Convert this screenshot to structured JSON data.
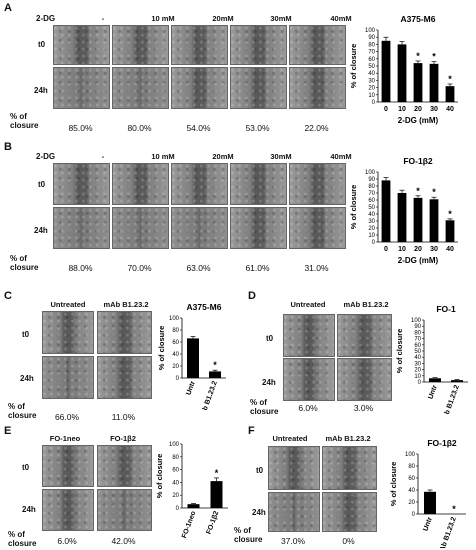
{
  "panels": {
    "A": {
      "label": "A",
      "row_header_label": "2-DG",
      "columns": [
        "-",
        "10 mM",
        "20mM",
        "30mM",
        "40mM"
      ],
      "rows": [
        "t0",
        "24h"
      ],
      "closure_label": "% of closure",
      "closure_values": [
        "85.0%",
        "80.0%",
        "54.0%",
        "53.0%",
        "22.0%"
      ]
    },
    "B": {
      "label": "B",
      "row_header_label": "2-DG",
      "columns": [
        "-",
        "10 mM",
        "20mM",
        "30mM",
        "40mM"
      ],
      "rows": [
        "t0",
        "24h"
      ],
      "closure_label": "% of closure",
      "closure_values": [
        "88.0%",
        "70.0%",
        "63.0%",
        "61.0%",
        "31.0%"
      ]
    },
    "C": {
      "label": "C",
      "columns": [
        "Untreated",
        "mAb B1.23.2"
      ],
      "rows": [
        "t0",
        "24h"
      ],
      "closure_label": "% of closure",
      "closure_values": [
        "66.0%",
        "11.0%"
      ]
    },
    "D": {
      "label": "D",
      "columns": [
        "Untreated",
        "mAb B1.23.2"
      ],
      "rows": [
        "t0",
        "24h"
      ],
      "closure_label": "% of closure",
      "closure_values": [
        "6.0%",
        "3.0%"
      ]
    },
    "E": {
      "label": "E",
      "columns": [
        "FO-1neo",
        "FO-1β2"
      ],
      "rows": [
        "t0",
        "24h"
      ],
      "closure_label": "% of closure",
      "closure_values": [
        "6.0%",
        "42.0%"
      ]
    },
    "F": {
      "label": "F",
      "columns": [
        "Untreated",
        "mAb B1.23.2"
      ],
      "rows": [
        "t0",
        "24h"
      ],
      "closure_label": "% of closure",
      "closure_values": [
        "37.0%",
        "0%"
      ]
    }
  },
  "chart_data": [
    {
      "id": "A",
      "type": "bar",
      "title": "A375-M6",
      "ylabel": "% of closure",
      "xlabel": "2-DG (mM)",
      "categories": [
        "0",
        "10",
        "20",
        "30",
        "40"
      ],
      "values": [
        85,
        80,
        54,
        53,
        22
      ],
      "errors": [
        5,
        4,
        3,
        3,
        3
      ],
      "significant": [
        false,
        false,
        true,
        true,
        true
      ],
      "ylim": [
        0,
        100
      ],
      "yticks": [
        0,
        10,
        20,
        30,
        40,
        50,
        60,
        70,
        80,
        90,
        100
      ],
      "bar_color": "#000000"
    },
    {
      "id": "B",
      "type": "bar",
      "title": "FO-1β2",
      "ylabel": "% of closure",
      "xlabel": "2-DG (mM)",
      "categories": [
        "0",
        "10",
        "20",
        "30",
        "40"
      ],
      "values": [
        88,
        70,
        63,
        61,
        31
      ],
      "errors": [
        4,
        4,
        3,
        3,
        2
      ],
      "significant": [
        false,
        false,
        true,
        true,
        true
      ],
      "ylim": [
        0,
        100
      ],
      "yticks": [
        0,
        10,
        20,
        30,
        40,
        50,
        60,
        70,
        80,
        90,
        100
      ],
      "bar_color": "#000000"
    },
    {
      "id": "C",
      "type": "bar",
      "title": "A375-M6",
      "ylabel": "% of closure",
      "xlabel": "",
      "categories": [
        "Untr",
        "mAb B1.23.2"
      ],
      "values": [
        66,
        11
      ],
      "errors": [
        3,
        2
      ],
      "significant": [
        false,
        true
      ],
      "ylim": [
        0,
        100
      ],
      "yticks": [
        0,
        20,
        40,
        60,
        80,
        100
      ],
      "bar_color": "#000000"
    },
    {
      "id": "D",
      "type": "bar",
      "title": "FO-1",
      "ylabel": "% of closure",
      "xlabel": "",
      "categories": [
        "Untr",
        "mAb B1.23.2"
      ],
      "values": [
        6,
        3
      ],
      "errors": [
        1,
        1
      ],
      "significant": [
        false,
        false
      ],
      "ylim": [
        0,
        100
      ],
      "yticks": [
        0,
        10,
        20,
        30,
        40,
        50,
        60,
        70,
        80,
        90,
        100
      ],
      "bar_color": "#000000"
    },
    {
      "id": "E",
      "type": "bar",
      "title": "",
      "ylabel": "% of closure",
      "xlabel": "",
      "categories": [
        "FO-1neo",
        "FO-1β2"
      ],
      "values": [
        6,
        42
      ],
      "errors": [
        1,
        5
      ],
      "significant": [
        false,
        true
      ],
      "ylim": [
        0,
        100
      ],
      "yticks": [
        0,
        20,
        40,
        60,
        80,
        100
      ],
      "bar_color": "#000000"
    },
    {
      "id": "F",
      "type": "bar",
      "title": "FO-1β2",
      "ylabel": "% of closure",
      "xlabel": "",
      "categories": [
        "Untr",
        "mAb B1.23.2"
      ],
      "values": [
        37,
        0
      ],
      "errors": [
        3,
        0
      ],
      "significant": [
        false,
        true
      ],
      "ylim": [
        0,
        100
      ],
      "yticks": [
        0,
        20,
        40,
        60,
        80,
        100
      ],
      "bar_color": "#000000"
    }
  ]
}
